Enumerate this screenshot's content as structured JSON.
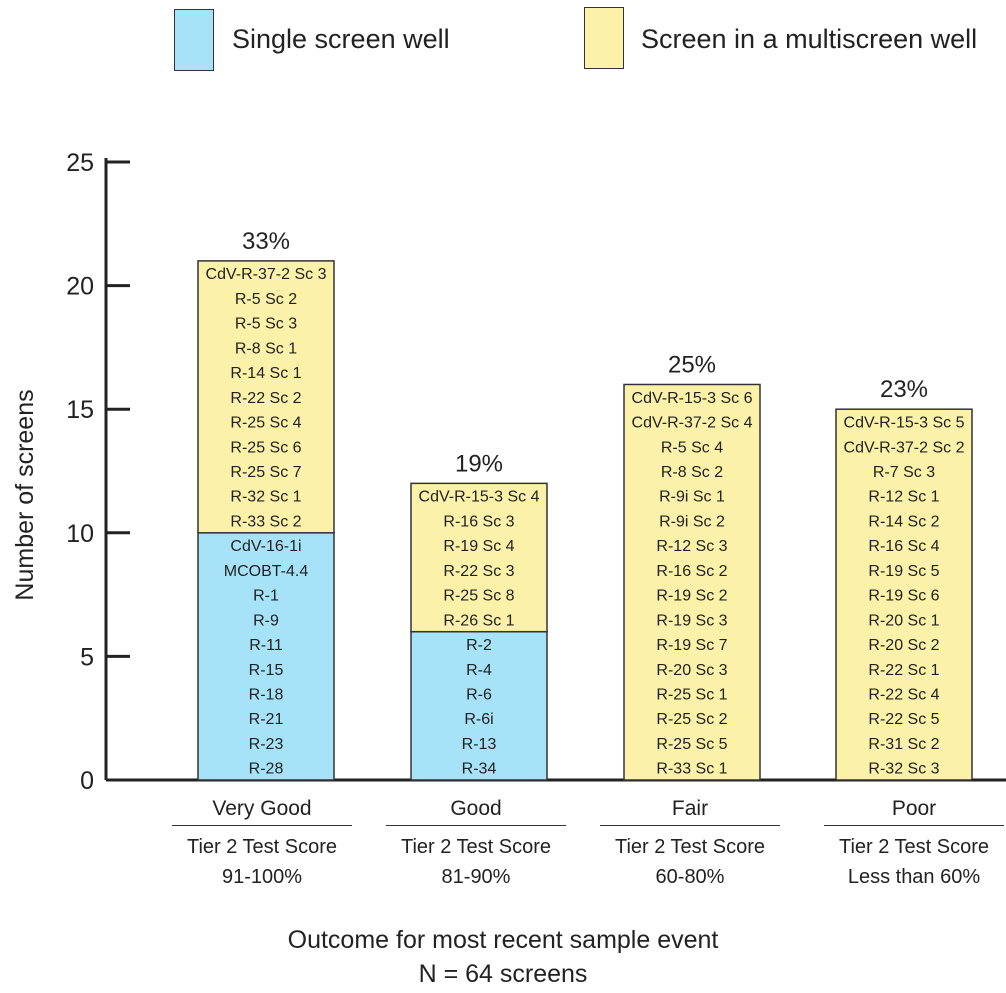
{
  "legend": {
    "single": {
      "label": "Single screen well",
      "color": "#a6e3f8"
    },
    "multi": {
      "label": "Screen in a multiscreen well",
      "color": "#fbf1a8"
    }
  },
  "chart_data": {
    "type": "bar",
    "stacked": true,
    "ylabel": "Number of screens",
    "ylim": [
      0,
      25
    ],
    "yticks": [
      "0",
      "5",
      "10",
      "15",
      "20",
      "25"
    ],
    "xlabel": "Outcome for most recent sample event",
    "xlabel2": "N = 64 screens",
    "categories": [
      {
        "name": "Very Good",
        "sub1": "Tier 2 Test Score",
        "sub2": "91-100%"
      },
      {
        "name": "Good",
        "sub1": "Tier 2 Test Score",
        "sub2": "81-90%"
      },
      {
        "name": "Fair",
        "sub1": "Tier 2 Test Score",
        "sub2": "60-80%"
      },
      {
        "name": "Poor",
        "sub1": "Tier 2 Test Score",
        "sub2": "Less than 60%"
      }
    ],
    "percent_labels": [
      "33%",
      "19%",
      "25%",
      "23%"
    ],
    "series": [
      {
        "name": "Single screen well",
        "values": [
          10,
          6,
          0,
          0
        ],
        "labels": [
          [
            "CdV-16-1i",
            "MCOBT-4.4",
            "R-1",
            "R-9",
            "R-11",
            "R-15",
            "R-18",
            "R-21",
            "R-23",
            "R-28"
          ],
          [
            "R-2",
            "R-4",
            "R-6",
            "R-6i",
            "R-13",
            "R-34"
          ],
          [],
          []
        ]
      },
      {
        "name": "Screen in a multiscreen well",
        "values": [
          11,
          6,
          16,
          15
        ],
        "labels": [
          [
            "CdV-R-37-2 Sc 3",
            "R-5 Sc 2",
            "R-5 Sc 3",
            "R-8 Sc 1",
            "R-14 Sc 1",
            "R-22 Sc 2",
            "R-25 Sc 4",
            "R-25 Sc 6",
            "R-25 Sc 7",
            "R-32 Sc 1",
            "R-33 Sc 2"
          ],
          [
            "CdV-R-15-3 Sc 4",
            "R-16 Sc 3",
            "R-19 Sc 4",
            "R-22 Sc 3",
            "R-25 Sc 8",
            "R-26 Sc 1"
          ],
          [
            "CdV-R-15-3 Sc 6",
            "CdV-R-37-2 Sc 4",
            "R-5 Sc 4",
            "R-8 Sc 2",
            "R-9i Sc 1",
            "R-9i Sc 2",
            "R-12 Sc 3",
            "R-16 Sc 2",
            "R-19 Sc 2",
            "R-19 Sc 3",
            "R-19 Sc 7",
            "R-20 Sc 3",
            "R-25 Sc 1",
            "R-25 Sc 2",
            "R-25 Sc 5",
            "R-33 Sc 1"
          ],
          [
            "CdV-R-15-3 Sc 5",
            "CdV-R-37-2 Sc 2",
            "R-7 Sc 3",
            "R-12 Sc 1",
            "R-14 Sc 2",
            "R-16 Sc 4",
            "R-19 Sc 5",
            "R-19 Sc 6",
            "R-20 Sc 1",
            "R-20 Sc 2",
            "R-22 Sc 1",
            "R-22 Sc 4",
            "R-22 Sc 5",
            "R-31 Sc 2",
            "R-32 Sc 3"
          ]
        ]
      }
    ]
  }
}
